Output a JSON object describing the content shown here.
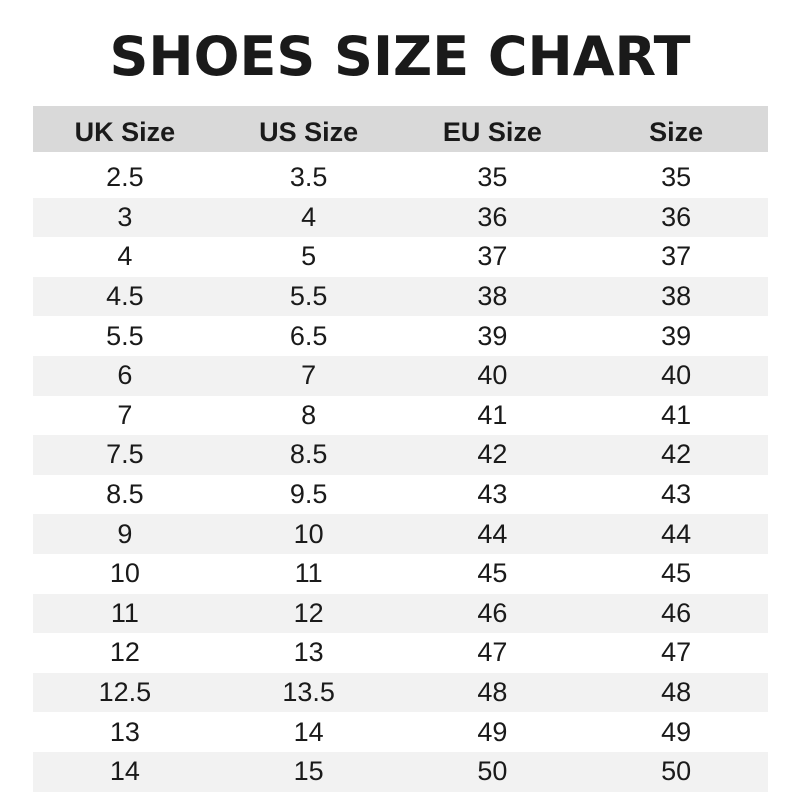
{
  "chart_data": {
    "type": "table",
    "title": "SHOES SIZE CHART",
    "columns": [
      "UK Size",
      "US Size",
      "EU Size",
      "Size"
    ],
    "rows": [
      [
        "2.5",
        "3.5",
        "35",
        "35"
      ],
      [
        "3",
        "4",
        "36",
        "36"
      ],
      [
        "4",
        "5",
        "37",
        "37"
      ],
      [
        "4.5",
        "5.5",
        "38",
        "38"
      ],
      [
        "5.5",
        "6.5",
        "39",
        "39"
      ],
      [
        "6",
        "7",
        "40",
        "40"
      ],
      [
        "7",
        "8",
        "41",
        "41"
      ],
      [
        "7.5",
        "8.5",
        "42",
        "42"
      ],
      [
        "8.5",
        "9.5",
        "43",
        "43"
      ],
      [
        "9",
        "10",
        "44",
        "44"
      ],
      [
        "10",
        "11",
        "45",
        "45"
      ],
      [
        "11",
        "12",
        "46",
        "46"
      ],
      [
        "12",
        "13",
        "47",
        "47"
      ],
      [
        "12.5",
        "13.5",
        "48",
        "48"
      ],
      [
        "13",
        "14",
        "49",
        "49"
      ],
      [
        "14",
        "15",
        "50",
        "50"
      ]
    ],
    "colors": {
      "header_bg": "#d9d9d9",
      "stripe_bg": "#f2f2f2",
      "text": "#1a1a1a"
    }
  }
}
